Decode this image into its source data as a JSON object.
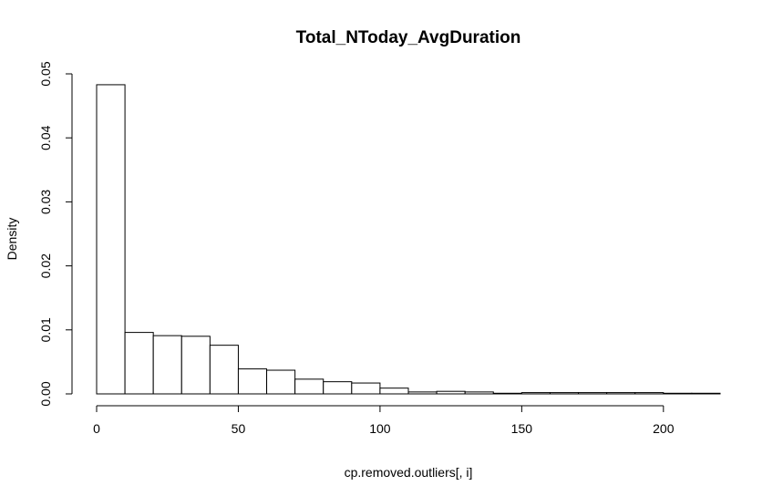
{
  "chart_data": {
    "type": "bar",
    "title": "Total_NToday_AvgDuration",
    "xlabel": "cp.removed.outliers[, i]",
    "ylabel": "Density",
    "xlim": [
      0,
      220
    ],
    "ylim": [
      0,
      0.05
    ],
    "x_ticks": [
      0,
      50,
      100,
      150,
      200
    ],
    "x_tick_labels": [
      "0",
      "50",
      "100",
      "150",
      "200"
    ],
    "y_ticks": [
      0,
      0.01,
      0.02,
      0.03,
      0.04,
      0.05
    ],
    "y_tick_labels": [
      "0.00",
      "0.01",
      "0.02",
      "0.03",
      "0.04",
      "0.05"
    ],
    "bin_width": 10,
    "bins": [
      {
        "start": 0,
        "end": 10,
        "density": 0.0483
      },
      {
        "start": 10,
        "end": 20,
        "density": 0.0096
      },
      {
        "start": 20,
        "end": 30,
        "density": 0.0091
      },
      {
        "start": 30,
        "end": 40,
        "density": 0.009
      },
      {
        "start": 40,
        "end": 50,
        "density": 0.0076
      },
      {
        "start": 50,
        "end": 60,
        "density": 0.0039
      },
      {
        "start": 60,
        "end": 70,
        "density": 0.0037
      },
      {
        "start": 70,
        "end": 80,
        "density": 0.0023
      },
      {
        "start": 80,
        "end": 90,
        "density": 0.0019
      },
      {
        "start": 90,
        "end": 100,
        "density": 0.0017
      },
      {
        "start": 100,
        "end": 110,
        "density": 0.0009
      },
      {
        "start": 110,
        "end": 120,
        "density": 0.0003
      },
      {
        "start": 120,
        "end": 130,
        "density": 0.0004
      },
      {
        "start": 130,
        "end": 140,
        "density": 0.0003
      },
      {
        "start": 140,
        "end": 150,
        "density": 0.0001
      },
      {
        "start": 150,
        "end": 160,
        "density": 0.0002
      },
      {
        "start": 160,
        "end": 170,
        "density": 0.0002
      },
      {
        "start": 170,
        "end": 180,
        "density": 0.0002
      },
      {
        "start": 180,
        "end": 190,
        "density": 0.0002
      },
      {
        "start": 190,
        "end": 200,
        "density": 0.0002
      },
      {
        "start": 200,
        "end": 210,
        "density": 0.0001
      },
      {
        "start": 210,
        "end": 220,
        "density": 0.0001
      }
    ],
    "grid": false,
    "legend": "none",
    "colors": {
      "bar_fill": "#ffffff",
      "bar_stroke": "#000000"
    }
  }
}
